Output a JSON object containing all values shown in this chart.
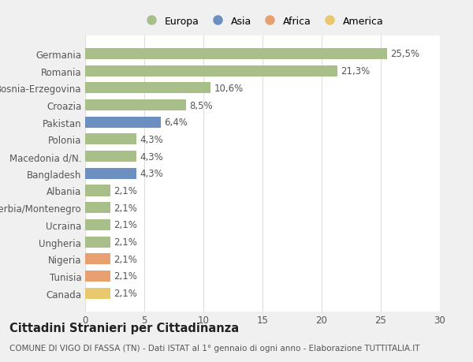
{
  "categories": [
    "Canada",
    "Tunisia",
    "Nigeria",
    "Ungheria",
    "Ucraina",
    "Serbia/Montenegro",
    "Albania",
    "Bangladesh",
    "Macedonia d/N.",
    "Polonia",
    "Pakistan",
    "Croazia",
    "Bosnia-Erzegovina",
    "Romania",
    "Germania"
  ],
  "values": [
    2.1,
    2.1,
    2.1,
    2.1,
    2.1,
    2.1,
    2.1,
    4.3,
    4.3,
    4.3,
    6.4,
    8.5,
    10.6,
    21.3,
    25.5
  ],
  "labels": [
    "2,1%",
    "2,1%",
    "2,1%",
    "2,1%",
    "2,1%",
    "2,1%",
    "2,1%",
    "4,3%",
    "4,3%",
    "4,3%",
    "6,4%",
    "8,5%",
    "10,6%",
    "21,3%",
    "25,5%"
  ],
  "colors": [
    "#e8c96e",
    "#e8a070",
    "#e8a070",
    "#a8bf8a",
    "#a8bf8a",
    "#a8bf8a",
    "#a8bf8a",
    "#6a8fc0",
    "#a8bf8a",
    "#a8bf8a",
    "#6a8fc0",
    "#a8bf8a",
    "#a8bf8a",
    "#a8bf8a",
    "#a8bf8a"
  ],
  "continent_colors": {
    "Europa": "#a8bf8a",
    "Asia": "#6a8fc0",
    "Africa": "#e8a070",
    "America": "#e8c96e"
  },
  "title": "Cittadini Stranieri per Cittadinanza",
  "subtitle": "COMUNE DI VIGO DI FASSA (TN) - Dati ISTAT al 1° gennaio di ogni anno - Elaborazione TUTTITALIA.IT",
  "xlim": [
    0,
    30
  ],
  "xticks": [
    0,
    5,
    10,
    15,
    20,
    25,
    30
  ],
  "background_color": "#f0f0f0",
  "plot_background": "#ffffff",
  "grid_color": "#dddddd",
  "bar_height": 0.65,
  "label_fontsize": 8.5,
  "title_fontsize": 10.5,
  "subtitle_fontsize": 7.5,
  "tick_fontsize": 8.5,
  "legend_fontsize": 9
}
